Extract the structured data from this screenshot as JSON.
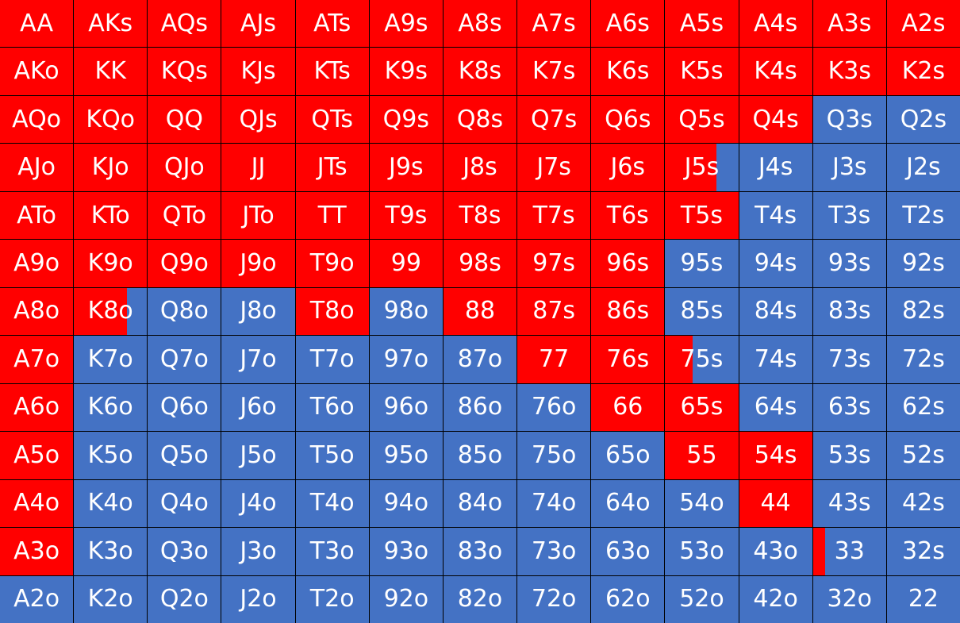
{
  "colors": {
    "raise": "#ff0000",
    "fold": "#4472c4",
    "text": "#ffffff",
    "gridline": "#000000"
  },
  "chart_data": {
    "type": "heatmap",
    "description_of_values": "fraction of each cell filled red (raise frequency), 0 to 1",
    "rows": [
      [
        "AA",
        "AKs",
        "AQs",
        "AJs",
        "ATs",
        "A9s",
        "A8s",
        "A7s",
        "A6s",
        "A5s",
        "A4s",
        "A3s",
        "A2s"
      ],
      [
        "AKo",
        "KK",
        "KQs",
        "KJs",
        "KTs",
        "K9s",
        "K8s",
        "K7s",
        "K6s",
        "K5s",
        "K4s",
        "K3s",
        "K2s"
      ],
      [
        "AQo",
        "KQo",
        "QQ",
        "QJs",
        "QTs",
        "Q9s",
        "Q8s",
        "Q7s",
        "Q6s",
        "Q5s",
        "Q4s",
        "Q3s",
        "Q2s"
      ],
      [
        "AJo",
        "KJo",
        "QJo",
        "JJ",
        "JTs",
        "J9s",
        "J8s",
        "J7s",
        "J6s",
        "J5s",
        "J4s",
        "J3s",
        "J2s"
      ],
      [
        "ATo",
        "KTo",
        "QTo",
        "JTo",
        "TT",
        "T9s",
        "T8s",
        "T7s",
        "T6s",
        "T5s",
        "T4s",
        "T3s",
        "T2s"
      ],
      [
        "A9o",
        "K9o",
        "Q9o",
        "J9o",
        "T9o",
        "99",
        "98s",
        "97s",
        "96s",
        "95s",
        "94s",
        "93s",
        "92s"
      ],
      [
        "A8o",
        "K8o",
        "Q8o",
        "J8o",
        "T8o",
        "98o",
        "88",
        "87s",
        "86s",
        "85s",
        "84s",
        "83s",
        "82s"
      ],
      [
        "A7o",
        "K7o",
        "Q7o",
        "J7o",
        "T7o",
        "97o",
        "87o",
        "77",
        "76s",
        "75s",
        "74s",
        "73s",
        "72s"
      ],
      [
        "A6o",
        "K6o",
        "Q6o",
        "J6o",
        "T6o",
        "96o",
        "86o",
        "76o",
        "66",
        "65s",
        "64s",
        "63s",
        "62s"
      ],
      [
        "A5o",
        "K5o",
        "Q5o",
        "J5o",
        "T5o",
        "95o",
        "85o",
        "75o",
        "65o",
        "55",
        "54s",
        "53s",
        "52s"
      ],
      [
        "A4o",
        "K4o",
        "Q4o",
        "J4o",
        "T4o",
        "94o",
        "84o",
        "74o",
        "64o",
        "54o",
        "44",
        "43s",
        "42s"
      ],
      [
        "A3o",
        "K3o",
        "Q3o",
        "J3o",
        "T3o",
        "93o",
        "83o",
        "73o",
        "63o",
        "53o",
        "43o",
        "33",
        "32s"
      ],
      [
        "A2o",
        "K2o",
        "Q2o",
        "J2o",
        "T2o",
        "92o",
        "82o",
        "72o",
        "62o",
        "52o",
        "42o",
        "32o",
        "22"
      ]
    ],
    "raise_fraction": [
      [
        1,
        1,
        1,
        1,
        1,
        1,
        1,
        1,
        1,
        1,
        1,
        1,
        1
      ],
      [
        1,
        1,
        1,
        1,
        1,
        1,
        1,
        1,
        1,
        1,
        1,
        1,
        1
      ],
      [
        1,
        1,
        1,
        1,
        1,
        1,
        1,
        1,
        1,
        1,
        1,
        0,
        0
      ],
      [
        1,
        1,
        1,
        1,
        1,
        1,
        1,
        1,
        1,
        0.7,
        0,
        0,
        0
      ],
      [
        1,
        1,
        1,
        1,
        1,
        1,
        1,
        1,
        1,
        1,
        0,
        0,
        0
      ],
      [
        1,
        1,
        1,
        1,
        1,
        1,
        1,
        1,
        1,
        0,
        0,
        0,
        0
      ],
      [
        1,
        0.73,
        0,
        0,
        1,
        0,
        1,
        1,
        1,
        0,
        0,
        0,
        0
      ],
      [
        1,
        0,
        0,
        0,
        0,
        0,
        0,
        1,
        1,
        0.38,
        0,
        0,
        0
      ],
      [
        1,
        0,
        0,
        0,
        0,
        0,
        0,
        0,
        1,
        1,
        0,
        0,
        0
      ],
      [
        1,
        0,
        0,
        0,
        0,
        0,
        0,
        0,
        0,
        1,
        1,
        0,
        0
      ],
      [
        1,
        0,
        0,
        0,
        0,
        0,
        0,
        0,
        0,
        0,
        1,
        0,
        0
      ],
      [
        1,
        0,
        0,
        0,
        0,
        0,
        0,
        0,
        0,
        0,
        0,
        0.17,
        0
      ],
      [
        0,
        0,
        0,
        0,
        0,
        0,
        0,
        0,
        0,
        0,
        0,
        0,
        0
      ]
    ]
  }
}
